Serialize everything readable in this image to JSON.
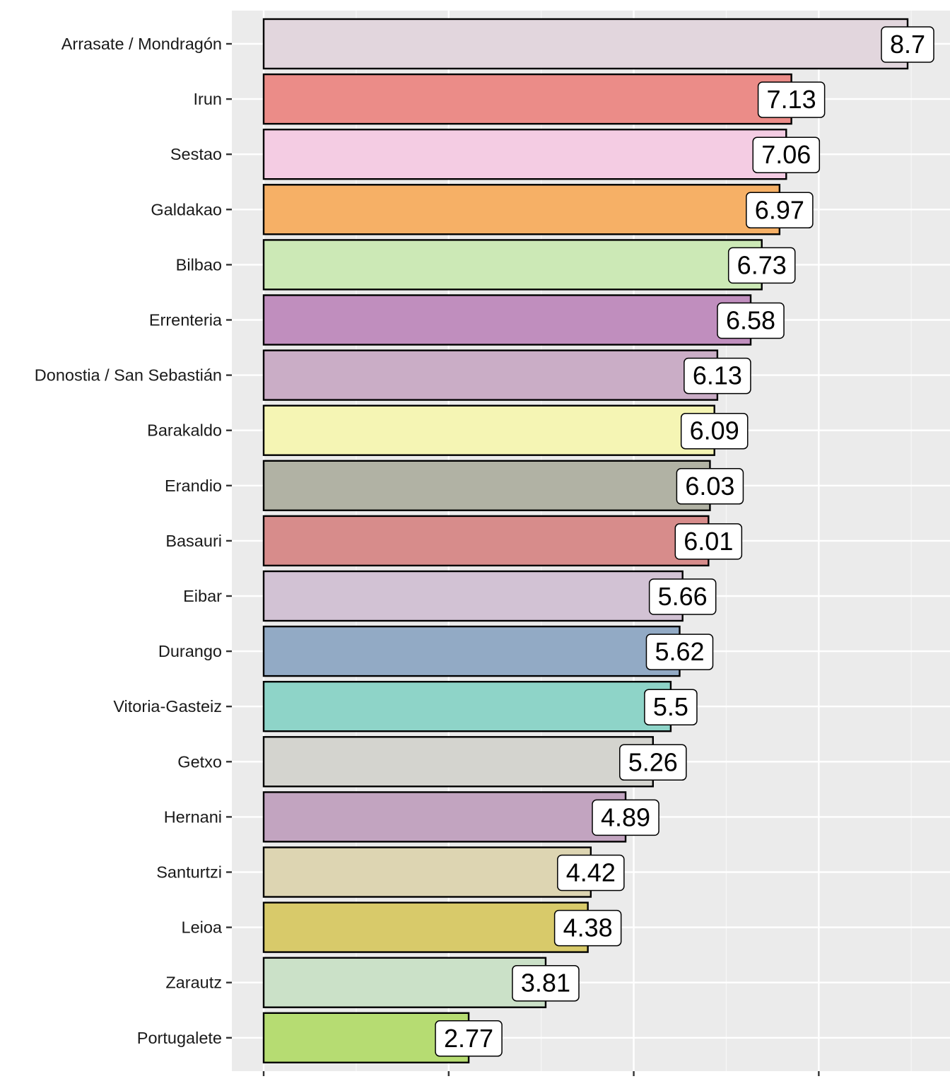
{
  "chart_data": {
    "type": "bar",
    "orientation": "horizontal",
    "title": "",
    "xlabel": "",
    "ylabel": "",
    "xlim": [
      0,
      9.1
    ],
    "x_ticks": [
      0,
      2.5,
      5,
      7.5
    ],
    "grid": true,
    "categories": [
      "Arrasate / Mondragón",
      "Irun",
      "Sestao",
      "Galdakao",
      "Bilbao",
      "Errenteria",
      "Donostia / San Sebastián",
      "Barakaldo",
      "Erandio",
      "Basauri",
      "Eibar",
      "Durango",
      "Vitoria-Gasteiz",
      "Getxo",
      "Hernani",
      "Santurtzi",
      "Leioa",
      "Zarautz",
      "Portugalete"
    ],
    "values": [
      8.7,
      7.13,
      7.06,
      6.97,
      6.73,
      6.58,
      6.13,
      6.09,
      6.03,
      6.01,
      5.66,
      5.62,
      5.5,
      5.26,
      4.89,
      4.42,
      4.38,
      3.81,
      2.77
    ],
    "labels": [
      "8.7",
      "7.13",
      "7.06",
      "6.97",
      "6.73",
      "6.58",
      "6.13",
      "6.09",
      "6.03",
      "6.01",
      "5.66",
      "5.62",
      "5.5",
      "5.26",
      "4.89",
      "4.42",
      "4.38",
      "3.81",
      "2.77"
    ],
    "colors": [
      "#E2D6DD",
      "#EB8C88",
      "#F4CCE3",
      "#F6B066",
      "#CCE9B6",
      "#C08EBE",
      "#CAADC6",
      "#F5F5B4",
      "#B1B2A4",
      "#D78C8B",
      "#D2C2D4",
      "#92AAC5",
      "#8ED4C8",
      "#D4D4CF",
      "#C2A4C0",
      "#DDD5B2",
      "#D8CA6A",
      "#CBE1C8",
      "#B6DC72"
    ]
  }
}
